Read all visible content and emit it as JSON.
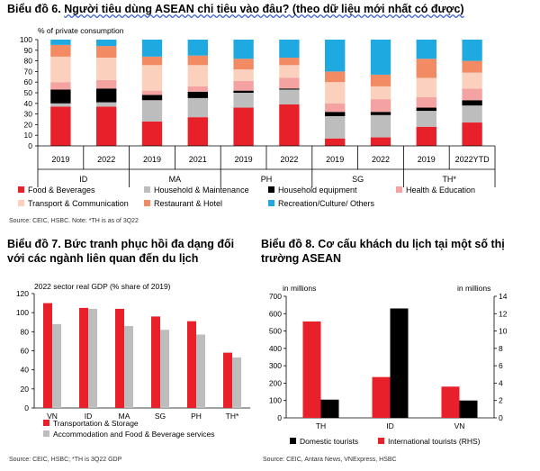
{
  "chart_data": [
    {
      "type": "bar",
      "stacked": true,
      "title_label": "Biểu đồ 6.",
      "title": "Người tiêu dùng ASEAN chi tiêu vào đâu? (theo dữ liệu mới nhất có được)",
      "ylabel": "% of private consumption",
      "ylim": [
        0,
        100
      ],
      "yticks": [
        0,
        10,
        20,
        30,
        40,
        50,
        60,
        70,
        80,
        90,
        100
      ],
      "categories": [
        "2019",
        "2022",
        "2019",
        "2021",
        "2019",
        "2022",
        "2019",
        "2022",
        "2019",
        "2022YTD"
      ],
      "groups": [
        {
          "label": "ID",
          "span": 2
        },
        {
          "label": "MA",
          "span": 2
        },
        {
          "label": "PH",
          "span": 2
        },
        {
          "label": "SG",
          "span": 2
        },
        {
          "label": "TH*",
          "span": 2
        }
      ],
      "series": [
        {
          "name": "Food & Beverages",
          "color": "#e8202a",
          "values": [
            37,
            37,
            23,
            27,
            36,
            39,
            7,
            8,
            18,
            22
          ]
        },
        {
          "name": "Household & Maintenance",
          "color": "#bdbdbd",
          "values": [
            3,
            4,
            20,
            18,
            14,
            14,
            21,
            21,
            15,
            16
          ]
        },
        {
          "name": "Household equipment",
          "color": "#000000",
          "values": [
            13,
            13,
            5,
            6,
            2,
            1,
            4,
            3,
            3,
            5
          ]
        },
        {
          "name": "Health & Education",
          "color": "#f4a2a2",
          "values": [
            7,
            8,
            4,
            5,
            9,
            10,
            8,
            12,
            10,
            11
          ]
        },
        {
          "name": "Transport & Communication",
          "color": "#fbd1bd",
          "values": [
            24,
            21,
            24,
            20,
            11,
            12,
            20,
            12,
            18,
            15
          ]
        },
        {
          "name": "Restaurant & Hotel",
          "color": "#f28a63",
          "values": [
            11,
            11,
            8,
            9,
            10,
            7,
            10,
            11,
            18,
            11
          ]
        },
        {
          "name": "Recreation/Culture/ Others",
          "color": "#1ea9e0",
          "values": [
            5,
            6,
            16,
            15,
            18,
            17,
            30,
            33,
            18,
            20
          ]
        }
      ],
      "source": "Source: CEIC, HSBC. Note: *TH is as of 3Q22"
    },
    {
      "type": "bar",
      "title_label": "Biểu đồ 7.",
      "title": "Bức tranh phục hồi đa dạng đối với các ngành liên quan đến du lịch",
      "ylabel": "2022 sector real GDP (% share of 2019)",
      "ylim": [
        0,
        120
      ],
      "yticks": [
        0,
        20,
        40,
        60,
        80,
        100,
        120
      ],
      "categories": [
        "VN",
        "ID",
        "MA",
        "SG",
        "PH",
        "TH*"
      ],
      "series": [
        {
          "name": "Transportation & Storage",
          "color": "#e8202a",
          "values": [
            110,
            105,
            104,
            96,
            91,
            58
          ]
        },
        {
          "name": "Accommodation and Food & Beverage services",
          "color": "#bdbdbd",
          "values": [
            88,
            104,
            86,
            82,
            77,
            53
          ]
        }
      ],
      "source": "Source: CEIC, HSBC; *TH is 3Q22 GDP"
    },
    {
      "type": "bar",
      "title_label": "Biểu đồ 8.",
      "title": "Cơ cấu khách du lịch tại một số thị trường ASEAN",
      "ylabel_left": "in millions",
      "ylabel_right": "in millions",
      "ylim_left": [
        0,
        700
      ],
      "yticks_left": [
        0,
        100,
        200,
        300,
        400,
        500,
        600,
        700
      ],
      "ylim_right": [
        0,
        14
      ],
      "yticks_right": [
        0,
        2,
        4,
        6,
        8,
        10,
        12,
        14
      ],
      "categories": [
        "TH",
        "ID",
        "VN"
      ],
      "series": [
        {
          "name": "International tourists (RHS)",
          "color": "#e8202a",
          "axis": "right",
          "values": [
            11.1,
            4.7,
            3.6
          ]
        },
        {
          "name": "Domestic tourists",
          "color": "#000000",
          "axis": "left",
          "values": [
            105,
            630,
            100
          ]
        }
      ],
      "legend_order": [
        1,
        0
      ],
      "source": "Source: CEIC, Antara News, VNExpress, HSBC"
    }
  ]
}
